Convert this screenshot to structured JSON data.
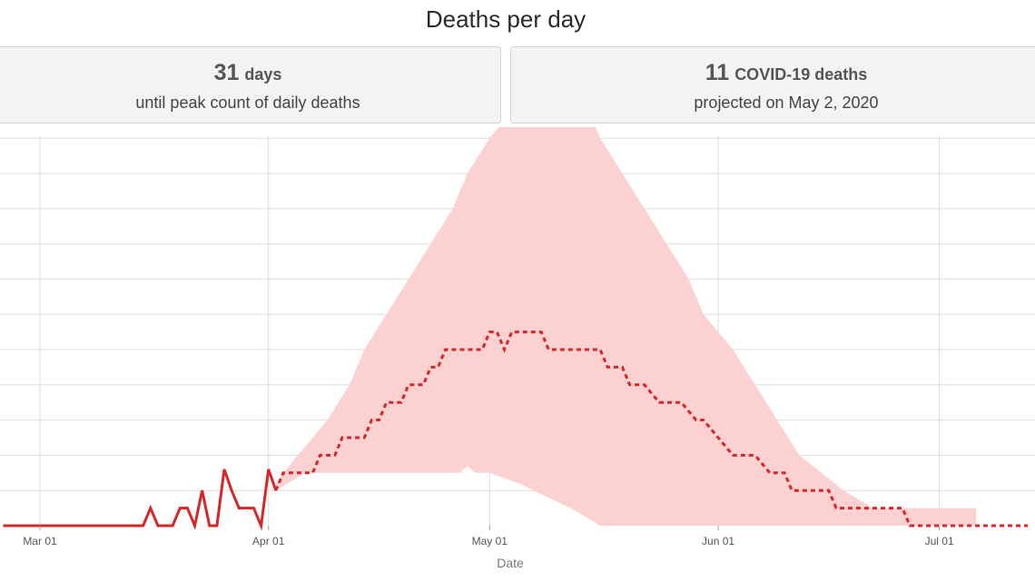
{
  "header": {
    "title": "Deaths per day"
  },
  "summary": {
    "peak_days_value": "31",
    "peak_days_unit": "days",
    "peak_days_caption": "until peak count of daily deaths",
    "deaths_value": "11",
    "deaths_unit": "COVID-19 deaths",
    "deaths_caption": "projected on May 2, 2020"
  },
  "chart_data": {
    "type": "line",
    "title": "Deaths per day",
    "xlabel": "Date",
    "ylabel": "",
    "x_tick_labels": [
      "Mar 01",
      "Apr 01",
      "May 01",
      "Jun 01",
      "Jul 01"
    ],
    "x_tick_dates": [
      "2020-03-01",
      "2020-04-01",
      "2020-05-01",
      "2020-06-01",
      "2020-07-01"
    ],
    "x_range": [
      "2020-02-25",
      "2020-07-13"
    ],
    "grid": true,
    "colors": {
      "observed": "#d62728",
      "projected": "#d62728",
      "band": "#fcd1d1",
      "grid": "#dddddd"
    },
    "series": [
      {
        "style": "solid",
        "points": [
          [
            "2020-02-25",
            0
          ],
          [
            "2020-03-15",
            0
          ],
          [
            "2020-03-16",
            0.5
          ],
          [
            "2020-03-17",
            0
          ],
          [
            "2020-03-18",
            0
          ],
          [
            "2020-03-19",
            0
          ],
          [
            "2020-03-20",
            0.5
          ],
          [
            "2020-03-21",
            0.5
          ],
          [
            "2020-03-22",
            0
          ],
          [
            "2020-03-23",
            1
          ],
          [
            "2020-03-24",
            0
          ],
          [
            "2020-03-25",
            0
          ],
          [
            "2020-03-26",
            1.6
          ],
          [
            "2020-03-27",
            1
          ],
          [
            "2020-03-28",
            0.5
          ],
          [
            "2020-03-29",
            0.5
          ],
          [
            "2020-03-30",
            0.5
          ],
          [
            "2020-03-31",
            0
          ],
          [
            "2020-04-01",
            1.6
          ],
          [
            "2020-04-02",
            1
          ]
        ]
      },
      {
        "style": "dotted",
        "points": [
          [
            "2020-04-02",
            1
          ],
          [
            "2020-04-03",
            1.5
          ],
          [
            "2020-04-07",
            1.5
          ],
          [
            "2020-04-08",
            2
          ],
          [
            "2020-04-10",
            2
          ],
          [
            "2020-04-11",
            2.5
          ],
          [
            "2020-04-14",
            2.5
          ],
          [
            "2020-04-15",
            3
          ],
          [
            "2020-04-16",
            3
          ],
          [
            "2020-04-17",
            3.5
          ],
          [
            "2020-04-19",
            3.5
          ],
          [
            "2020-04-20",
            4
          ],
          [
            "2020-04-22",
            4
          ],
          [
            "2020-04-23",
            4.5
          ],
          [
            "2020-04-24",
            4.5
          ],
          [
            "2020-04-25",
            5
          ],
          [
            "2020-04-30",
            5
          ],
          [
            "2020-05-01",
            5.5
          ],
          [
            "2020-05-02",
            5.5
          ],
          [
            "2020-05-03",
            5
          ],
          [
            "2020-05-04",
            5.5
          ],
          [
            "2020-05-08",
            5.5
          ],
          [
            "2020-05-09",
            5
          ],
          [
            "2020-05-16",
            5
          ],
          [
            "2020-05-17",
            4.5
          ],
          [
            "2020-05-19",
            4.5
          ],
          [
            "2020-05-20",
            4
          ],
          [
            "2020-05-22",
            4
          ],
          [
            "2020-05-24",
            3.5
          ],
          [
            "2020-05-27",
            3.5
          ],
          [
            "2020-05-29",
            3
          ],
          [
            "2020-05-30",
            3
          ],
          [
            "2020-06-01",
            2.5
          ],
          [
            "2020-06-03",
            2
          ],
          [
            "2020-06-06",
            2
          ],
          [
            "2020-06-08",
            1.5
          ],
          [
            "2020-06-10",
            1.5
          ],
          [
            "2020-06-11",
            1
          ],
          [
            "2020-06-16",
            1
          ],
          [
            "2020-06-17",
            0.5
          ],
          [
            "2020-06-26",
            0.5
          ],
          [
            "2020-06-27",
            0
          ],
          [
            "2020-07-13",
            0
          ]
        ]
      }
    ],
    "band": {
      "upper": [
        [
          "2020-04-02",
          1.2
        ],
        [
          "2020-04-03",
          1.5
        ],
        [
          "2020-04-05",
          2
        ],
        [
          "2020-04-07",
          2.5
        ],
        [
          "2020-04-09",
          3
        ],
        [
          "2020-04-12",
          4
        ],
        [
          "2020-04-14",
          5
        ],
        [
          "2020-04-17",
          6
        ],
        [
          "2020-04-20",
          7
        ],
        [
          "2020-04-23",
          8
        ],
        [
          "2020-04-26",
          9
        ],
        [
          "2020-04-28",
          10
        ],
        [
          "2020-05-01",
          11
        ],
        [
          "2020-05-03",
          11.5
        ],
        [
          "2020-05-05",
          12
        ],
        [
          "2020-05-14",
          12
        ],
        [
          "2020-05-16",
          11
        ],
        [
          "2020-05-19",
          10
        ],
        [
          "2020-05-22",
          9
        ],
        [
          "2020-05-25",
          8
        ],
        [
          "2020-05-28",
          7
        ],
        [
          "2020-05-30",
          6
        ],
        [
          "2020-06-01",
          5.5
        ],
        [
          "2020-06-03",
          5
        ],
        [
          "2020-06-06",
          4
        ],
        [
          "2020-06-09",
          3
        ],
        [
          "2020-06-12",
          2
        ],
        [
          "2020-06-15",
          1.5
        ],
        [
          "2020-06-18",
          1
        ],
        [
          "2020-06-22",
          0.5
        ],
        [
          "2020-06-29",
          0.5
        ],
        [
          "2020-07-01",
          0.5
        ],
        [
          "2020-07-06",
          0.5
        ]
      ],
      "lower": [
        [
          "2020-04-02",
          1
        ],
        [
          "2020-04-06",
          1.5
        ],
        [
          "2020-04-15",
          1.5
        ],
        [
          "2020-04-26",
          1.5
        ],
        [
          "2020-04-27",
          1.5
        ],
        [
          "2020-04-28",
          1.7
        ],
        [
          "2020-04-29",
          1.5
        ],
        [
          "2020-05-01",
          1.5
        ],
        [
          "2020-05-05",
          1.2
        ],
        [
          "2020-05-09",
          0.8
        ],
        [
          "2020-05-12",
          0.5
        ],
        [
          "2020-05-16",
          0
        ],
        [
          "2020-07-06",
          0
        ]
      ]
    }
  }
}
